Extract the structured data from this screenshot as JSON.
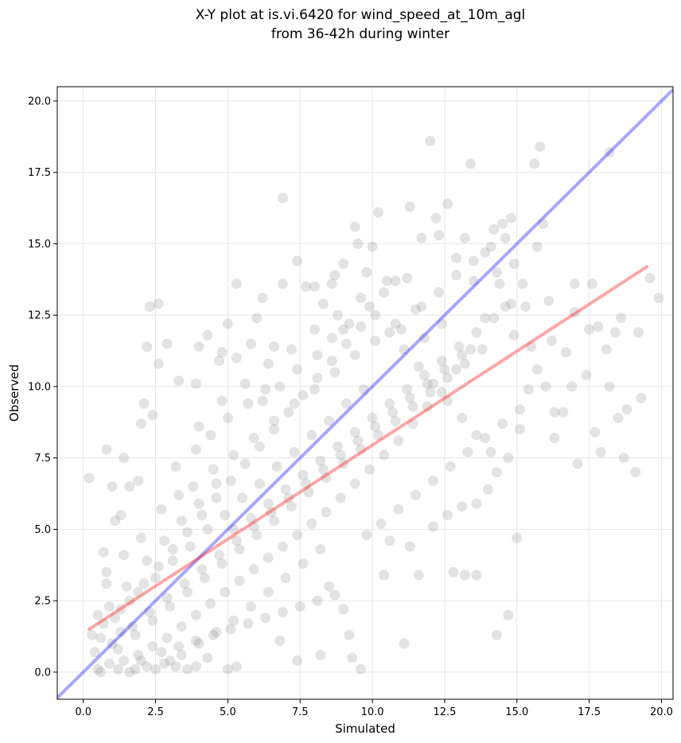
{
  "chart_data": {
    "type": "scatter",
    "title": "X-Y plot at is.vi.6420 for wind_speed_at_10m_agl",
    "subtitle": "from 36-42h during winter",
    "xlabel": "Simulated",
    "ylabel": "Observed",
    "xlim": [
      -0.9,
      20.4
    ],
    "ylim": [
      -0.95,
      20.5
    ],
    "xticks": [
      0.0,
      2.5,
      5.0,
      7.5,
      10.0,
      12.5,
      15.0,
      17.5,
      20.0
    ],
    "yticks": [
      0.0,
      2.5,
      5.0,
      7.5,
      10.0,
      12.5,
      15.0,
      17.5,
      20.0
    ],
    "xtick_labels": [
      "0.0",
      "2.5",
      "5.0",
      "7.5",
      "10.0",
      "12.5",
      "15.0",
      "17.5",
      "20.0"
    ],
    "ytick_labels": [
      "0.0",
      "2.5",
      "5.0",
      "7.5",
      "10.0",
      "12.5",
      "15.0",
      "17.5",
      "20.0"
    ],
    "grid": true,
    "colors": {
      "points": "#808080",
      "identity": "#0000ff",
      "fit": "#ff0000"
    },
    "identity_line": {
      "x": [
        -0.9,
        20.4
      ],
      "y": [
        -0.9,
        20.4
      ]
    },
    "fit_line": {
      "x": [
        0.2,
        19.5
      ],
      "y": [
        1.5,
        14.2
      ]
    },
    "points": [
      [
        0.2,
        6.8
      ],
      [
        0.7,
        4.2
      ],
      [
        0.8,
        7.8
      ],
      [
        0.8,
        3.1
      ],
      [
        1.4,
        7.5
      ],
      [
        1.0,
        6.5
      ],
      [
        1.1,
        5.3
      ],
      [
        1.6,
        6.5
      ],
      [
        1.3,
        5.5
      ],
      [
        1.9,
        6.7
      ],
      [
        2.2,
        11.4
      ],
      [
        2.3,
        12.8
      ],
      [
        2.6,
        12.9
      ],
      [
        2.1,
        9.4
      ],
      [
        2.0,
        8.7
      ],
      [
        2.4,
        9.0
      ],
      [
        2.6,
        10.8
      ],
      [
        2.9,
        11.5
      ],
      [
        3.3,
        10.2
      ],
      [
        3.9,
        10.1
      ],
      [
        4.0,
        11.4
      ],
      [
        4.3,
        11.8
      ],
      [
        4.7,
        10.9
      ],
      [
        4.8,
        11.2
      ],
      [
        5.0,
        12.2
      ],
      [
        5.3,
        13.6
      ],
      [
        5.3,
        11.0
      ],
      [
        5.8,
        11.5
      ],
      [
        6.0,
        12.4
      ],
      [
        6.2,
        13.1
      ],
      [
        6.6,
        11.4
      ],
      [
        6.9,
        13.6
      ],
      [
        6.9,
        16.6
      ],
      [
        7.4,
        14.4
      ],
      [
        7.7,
        13.5
      ],
      [
        8.0,
        13.5
      ],
      [
        8.3,
        12.9
      ],
      [
        8.6,
        13.6
      ],
      [
        8.7,
        13.9
      ],
      [
        9.0,
        14.3
      ],
      [
        9.0,
        12.0
      ],
      [
        9.4,
        15.6
      ],
      [
        9.5,
        15.0
      ],
      [
        9.8,
        14.0
      ],
      [
        10.0,
        14.9
      ],
      [
        10.2,
        16.1
      ],
      [
        10.5,
        13.7
      ],
      [
        10.8,
        13.7
      ],
      [
        11.2,
        13.8
      ],
      [
        11.3,
        16.3
      ],
      [
        11.7,
        15.2
      ],
      [
        12.0,
        18.6
      ],
      [
        12.2,
        15.9
      ],
      [
        12.3,
        15.3
      ],
      [
        12.6,
        16.4
      ],
      [
        12.9,
        14.5
      ],
      [
        13.2,
        15.2
      ],
      [
        13.4,
        17.8
      ],
      [
        13.5,
        13.7
      ],
      [
        13.9,
        14.7
      ],
      [
        14.2,
        15.5
      ],
      [
        14.3,
        14.0
      ],
      [
        14.4,
        13.6
      ],
      [
        14.5,
        15.7
      ],
      [
        14.6,
        15.2
      ],
      [
        14.8,
        15.9
      ],
      [
        14.9,
        14.3
      ],
      [
        15.2,
        13.6
      ],
      [
        15.3,
        12.8
      ],
      [
        15.6,
        17.8
      ],
      [
        15.7,
        14.9
      ],
      [
        15.8,
        18.4
      ],
      [
        15.9,
        15.7
      ],
      [
        16.1,
        13.0
      ],
      [
        16.2,
        11.6
      ],
      [
        16.0,
        10.0
      ],
      [
        16.3,
        9.1
      ],
      [
        16.3,
        8.2
      ],
      [
        16.6,
        9.1
      ],
      [
        16.7,
        11.2
      ],
      [
        16.9,
        10.0
      ],
      [
        17.0,
        12.6
      ],
      [
        17.0,
        13.6
      ],
      [
        17.1,
        7.3
      ],
      [
        17.4,
        10.4
      ],
      [
        17.5,
        12.0
      ],
      [
        17.6,
        13.6
      ],
      [
        17.7,
        8.4
      ],
      [
        17.9,
        7.7
      ],
      [
        17.8,
        12.1
      ],
      [
        18.1,
        11.3
      ],
      [
        18.2,
        10.0
      ],
      [
        18.2,
        18.2
      ],
      [
        18.4,
        11.9
      ],
      [
        18.5,
        8.9
      ],
      [
        18.6,
        12.4
      ],
      [
        18.7,
        7.5
      ],
      [
        18.8,
        9.2
      ],
      [
        19.1,
        7.0
      ],
      [
        19.2,
        11.9
      ],
      [
        19.3,
        9.6
      ],
      [
        19.6,
        13.8
      ],
      [
        19.9,
        13.1
      ],
      [
        15.0,
        4.7
      ],
      [
        14.7,
        2.0
      ],
      [
        14.3,
        1.3
      ],
      [
        13.6,
        3.4
      ],
      [
        13.2,
        3.4
      ],
      [
        12.8,
        3.5
      ],
      [
        11.6,
        3.4
      ],
      [
        11.1,
        1.0
      ],
      [
        9.6,
        0.1
      ],
      [
        9.3,
        0.5
      ],
      [
        9.2,
        1.3
      ],
      [
        9.0,
        2.2
      ],
      [
        8.5,
        3.0
      ],
      [
        8.2,
        0.6
      ],
      [
        7.4,
        0.4
      ],
      [
        6.8,
        1.1
      ],
      [
        5.3,
        0.2
      ],
      [
        5.0,
        0.1
      ],
      [
        4.3,
        0.5
      ],
      [
        3.6,
        0.1
      ],
      [
        3.0,
        0.4
      ],
      [
        1.6,
        0.0
      ],
      [
        2.2,
        0.2
      ],
      [
        10.4,
        3.4
      ],
      [
        10.6,
        4.6
      ],
      [
        11.3,
        4.4
      ],
      [
        12.1,
        5.1
      ],
      [
        12.6,
        5.5
      ],
      [
        13.1,
        5.8
      ],
      [
        13.6,
        5.9
      ],
      [
        14.0,
        6.4
      ],
      [
        14.3,
        7.0
      ],
      [
        14.7,
        7.5
      ],
      [
        15.1,
        8.5
      ],
      [
        15.4,
        9.9
      ],
      [
        15.5,
        11.4
      ],
      [
        15.7,
        10.6
      ],
      [
        14.9,
        11.8
      ],
      [
        14.6,
        12.8
      ],
      [
        13.9,
        12.4
      ],
      [
        13.4,
        11.3
      ],
      [
        12.9,
        10.6
      ],
      [
        12.4,
        9.8
      ],
      [
        11.9,
        9.3
      ],
      [
        11.4,
        8.7
      ],
      [
        10.9,
        8.1
      ],
      [
        10.4,
        7.6
      ],
      [
        9.9,
        7.1
      ],
      [
        9.4,
        6.6
      ],
      [
        8.9,
        6.1
      ],
      [
        8.4,
        5.6
      ],
      [
        7.9,
        5.2
      ],
      [
        7.4,
        4.8
      ],
      [
        6.9,
        4.4
      ],
      [
        6.4,
        4.0
      ],
      [
        5.9,
        3.6
      ],
      [
        5.4,
        3.2
      ],
      [
        4.9,
        2.8
      ],
      [
        4.4,
        2.4
      ],
      [
        3.9,
        2.0
      ],
      [
        3.4,
        1.6
      ],
      [
        2.9,
        1.2
      ],
      [
        2.4,
        0.9
      ],
      [
        1.9,
        0.6
      ],
      [
        1.4,
        0.4
      ],
      [
        0.9,
        0.3
      ],
      [
        0.5,
        0.1
      ],
      [
        0.6,
        1.2
      ],
      [
        1.1,
        1.9
      ],
      [
        1.6,
        2.5
      ],
      [
        2.1,
        3.1
      ],
      [
        2.6,
        3.7
      ],
      [
        3.1,
        4.3
      ],
      [
        3.6,
        4.9
      ],
      [
        4.1,
        5.5
      ],
      [
        4.6,
        6.1
      ],
      [
        5.1,
        6.7
      ],
      [
        5.6,
        7.3
      ],
      [
        6.1,
        7.9
      ],
      [
        6.6,
        8.5
      ],
      [
        7.1,
        9.1
      ],
      [
        7.6,
        9.7
      ],
      [
        8.1,
        10.3
      ],
      [
        8.6,
        10.9
      ],
      [
        9.1,
        11.5
      ],
      [
        9.6,
        12.1
      ],
      [
        10.1,
        12.5
      ],
      [
        10.6,
        11.9
      ],
      [
        11.1,
        11.3
      ],
      [
        11.6,
        10.7
      ],
      [
        12.1,
        10.1
      ],
      [
        12.6,
        9.5
      ],
      [
        13.1,
        8.9
      ],
      [
        13.6,
        8.3
      ],
      [
        14.1,
        7.7
      ],
      [
        12.4,
        12.2
      ],
      [
        11.8,
        11.7
      ],
      [
        9.7,
        9.9
      ],
      [
        9.1,
        9.4
      ],
      [
        8.5,
        8.8
      ],
      [
        7.9,
        8.3
      ],
      [
        7.3,
        7.7
      ],
      [
        6.7,
        7.2
      ],
      [
        6.1,
        6.6
      ],
      [
        5.5,
        6.1
      ],
      [
        4.9,
        5.5
      ],
      [
        4.3,
        5.0
      ],
      [
        3.7,
        4.4
      ],
      [
        3.1,
        3.9
      ],
      [
        2.5,
        3.3
      ],
      [
        1.9,
        2.8
      ],
      [
        1.3,
        2.2
      ],
      [
        0.7,
        1.7
      ],
      [
        1.2,
        0.8
      ],
      [
        1.8,
        1.3
      ],
      [
        2.4,
        1.8
      ],
      [
        3.0,
        2.3
      ],
      [
        3.6,
        2.8
      ],
      [
        4.2,
        3.3
      ],
      [
        4.8,
        3.8
      ],
      [
        5.4,
        4.3
      ],
      [
        6.0,
        4.8
      ],
      [
        6.6,
        5.3
      ],
      [
        7.2,
        5.8
      ],
      [
        7.8,
        6.3
      ],
      [
        8.4,
        6.8
      ],
      [
        9.0,
        7.3
      ],
      [
        9.6,
        7.8
      ],
      [
        10.2,
        8.3
      ],
      [
        10.8,
        8.8
      ],
      [
        11.4,
        9.3
      ],
      [
        12.0,
        9.8
      ],
      [
        12.6,
        10.3
      ],
      [
        13.2,
        10.8
      ],
      [
        13.8,
        11.3
      ],
      [
        2.0,
        0.4
      ],
      [
        2.7,
        0.7
      ],
      [
        3.3,
        0.9
      ],
      [
        3.9,
        1.1
      ],
      [
        4.5,
        1.3
      ],
      [
        5.1,
        1.5
      ],
      [
        5.7,
        1.7
      ],
      [
        6.3,
        1.9
      ],
      [
        6.9,
        2.1
      ],
      [
        7.5,
        2.3
      ],
      [
        8.1,
        2.5
      ],
      [
        8.7,
        2.7
      ],
      [
        3.8,
        6.5
      ],
      [
        4.5,
        7.1
      ],
      [
        5.2,
        7.6
      ],
      [
        5.9,
        8.2
      ],
      [
        6.6,
        8.8
      ],
      [
        7.3,
        9.4
      ],
      [
        8.0,
        9.9
      ],
      [
        8.7,
        10.5
      ],
      [
        9.4,
        11.1
      ],
      [
        10.1,
        11.6
      ],
      [
        10.8,
        12.2
      ],
      [
        11.5,
        12.7
      ],
      [
        4.0,
        8.6
      ],
      [
        4.8,
        9.5
      ],
      [
        5.6,
        10.1
      ],
      [
        6.4,
        10.8
      ],
      [
        7.2,
        11.3
      ],
      [
        8.0,
        12.0
      ],
      [
        8.8,
        12.5
      ],
      [
        9.6,
        13.1
      ],
      [
        0.9,
        2.3
      ],
      [
        1.5,
        3.0
      ],
      [
        2.2,
        3.9
      ],
      [
        2.8,
        4.6
      ],
      [
        3.4,
        5.3
      ],
      [
        4.0,
        5.9
      ],
      [
        4.6,
        6.6
      ],
      [
        5.2,
        5.0
      ],
      [
        5.8,
        5.4
      ],
      [
        6.4,
        5.9
      ],
      [
        7.0,
        6.4
      ],
      [
        7.6,
        6.9
      ],
      [
        8.2,
        7.4
      ],
      [
        8.8,
        7.9
      ],
      [
        9.4,
        8.4
      ],
      [
        10.0,
        8.9
      ],
      [
        10.6,
        9.4
      ],
      [
        11.2,
        9.9
      ],
      [
        11.8,
        10.4
      ],
      [
        12.4,
        10.9
      ],
      [
        13.0,
        11.4
      ],
      [
        13.6,
        11.9
      ],
      [
        14.2,
        12.4
      ],
      [
        14.8,
        12.9
      ],
      [
        9.8,
        4.8
      ],
      [
        10.3,
        5.2
      ],
      [
        10.9,
        5.7
      ],
      [
        11.5,
        6.2
      ],
      [
        12.1,
        6.7
      ],
      [
        12.7,
        7.2
      ],
      [
        13.3,
        7.7
      ],
      [
        13.9,
        8.2
      ],
      [
        14.5,
        8.7
      ],
      [
        15.1,
        9.2
      ],
      [
        8.2,
        4.3
      ],
      [
        7.6,
        3.8
      ],
      [
        7.0,
        3.3
      ],
      [
        6.4,
        2.8
      ],
      [
        5.8,
        2.3
      ],
      [
        5.2,
        1.8
      ],
      [
        4.6,
        1.4
      ],
      [
        4.0,
        1.0
      ],
      [
        3.4,
        0.6
      ],
      [
        2.8,
        0.3
      ],
      [
        1.0,
        1.0
      ],
      [
        1.3,
        1.4
      ],
      [
        1.7,
        1.6
      ],
      [
        2.3,
        2.1
      ],
      [
        2.9,
        2.6
      ],
      [
        3.5,
        3.1
      ],
      [
        4.1,
        3.6
      ],
      [
        4.7,
        4.1
      ],
      [
        5.3,
        4.6
      ],
      [
        5.9,
        5.1
      ],
      [
        6.5,
        5.6
      ],
      [
        7.1,
        6.1
      ],
      [
        7.7,
        6.6
      ],
      [
        8.3,
        7.1
      ],
      [
        8.9,
        7.6
      ],
      [
        9.5,
        8.1
      ],
      [
        10.1,
        8.6
      ],
      [
        10.7,
        9.1
      ],
      [
        11.3,
        9.6
      ],
      [
        11.9,
        10.1
      ],
      [
        12.5,
        10.6
      ],
      [
        13.1,
        11.1
      ],
      [
        6.2,
        9.5
      ],
      [
        6.8,
        10.0
      ],
      [
        7.4,
        10.6
      ],
      [
        8.1,
        11.1
      ],
      [
        8.6,
        11.7
      ],
      [
        9.2,
        12.2
      ],
      [
        9.9,
        12.8
      ],
      [
        10.4,
        13.3
      ],
      [
        11.0,
        12.0
      ],
      [
        11.7,
        12.8
      ],
      [
        12.3,
        13.3
      ],
      [
        12.9,
        13.9
      ],
      [
        13.5,
        14.4
      ],
      [
        14.1,
        14.9
      ],
      [
        3.2,
        7.2
      ],
      [
        3.9,
        7.8
      ],
      [
        4.4,
        8.3
      ],
      [
        5.0,
        8.9
      ],
      [
        5.7,
        9.4
      ],
      [
        6.3,
        9.9
      ],
      [
        2.7,
        5.7
      ],
      [
        3.3,
        6.2
      ],
      [
        2.0,
        4.7
      ],
      [
        1.4,
        4.1
      ],
      [
        0.8,
        3.5
      ],
      [
        0.5,
        2.0
      ],
      [
        0.4,
        0.7
      ],
      [
        0.3,
        1.3
      ],
      [
        0.6,
        0.0
      ],
      [
        1.2,
        0.1
      ],
      [
        1.8,
        0.1
      ],
      [
        2.5,
        0.1
      ],
      [
        3.2,
        0.2
      ],
      [
        3.9,
        0.2
      ]
    ]
  }
}
